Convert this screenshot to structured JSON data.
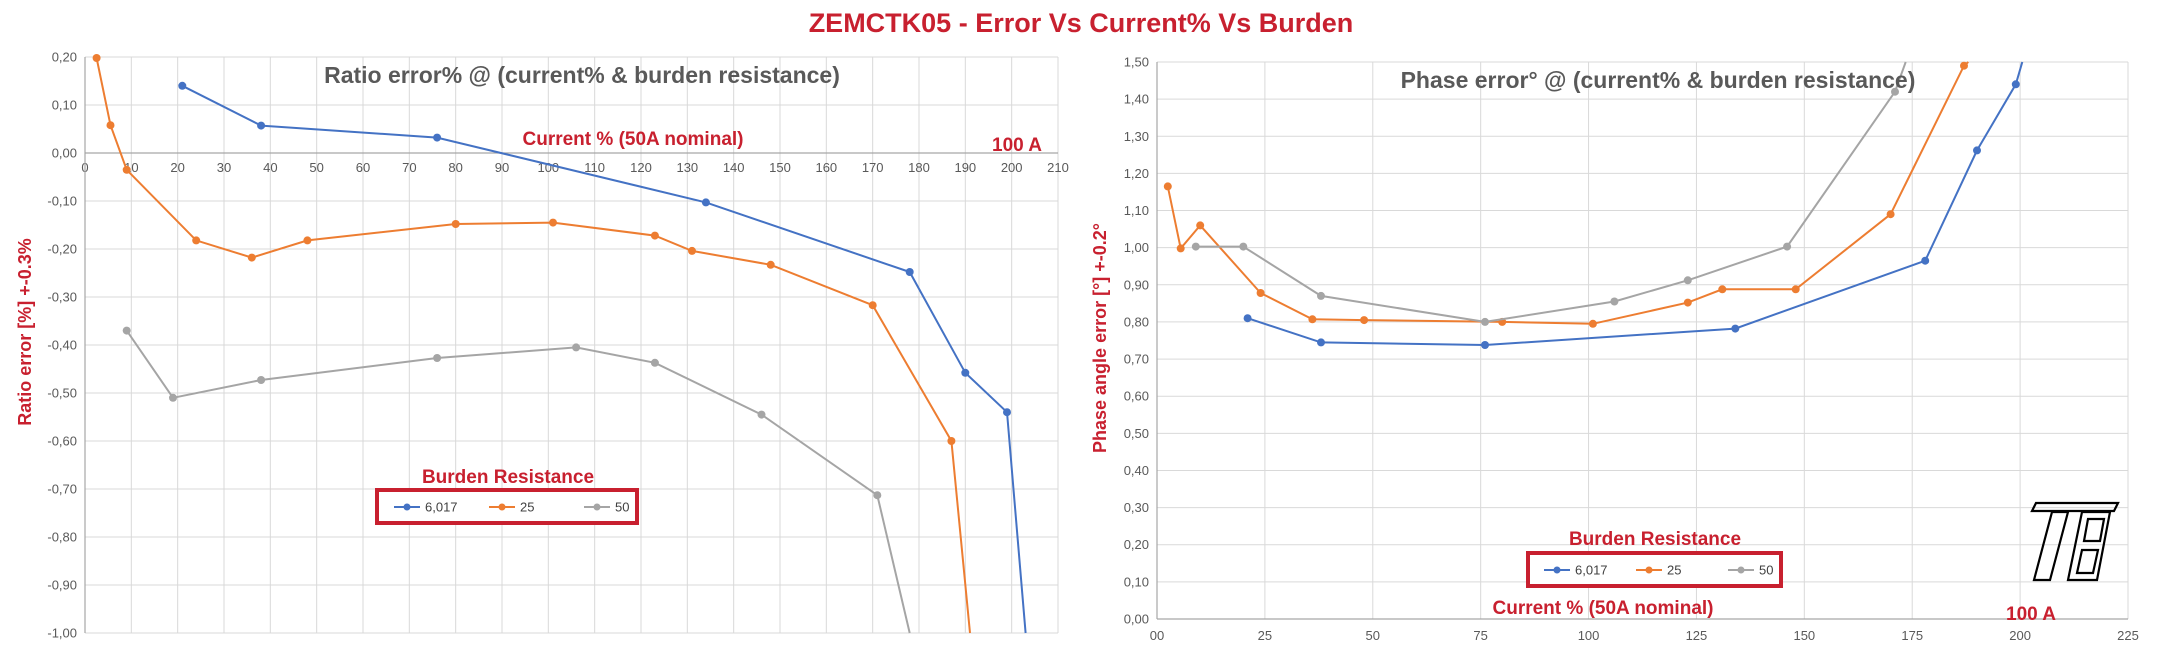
{
  "title": "ZEMCTK05  -  Error Vs Current% Vs Burden",
  "chart_data": [
    {
      "type": "line",
      "title": "Ratio error% @ (current% & burden resistance)",
      "xlabel": "Current % (50A nominal)",
      "ylabel": "Ratio error [%] +-0.3%",
      "marker_label": "100 A",
      "legend_title": "Burden Resistance",
      "xlim": [
        0,
        210
      ],
      "ylim": [
        -1.0,
        0.2
      ],
      "x_ticks": [
        "0",
        "10",
        "20",
        "30",
        "40",
        "50",
        "60",
        "70",
        "80",
        "90",
        "100",
        "110",
        "120",
        "130",
        "140",
        "150",
        "160",
        "170",
        "180",
        "190",
        "200",
        "210"
      ],
      "y_ticks": [
        "0,20",
        "0,10",
        "0,00",
        "-0,10",
        "-0,20",
        "-0,30",
        "-0,40",
        "-0,50",
        "-0,60",
        "-0,70",
        "-0,80",
        "-0,90",
        "-1,00"
      ],
      "series": [
        {
          "name": "6,017",
          "color": "#4472c4",
          "points": [
            [
              21,
              0.14
            ],
            [
              38,
              0.057
            ],
            [
              76,
              0.032
            ],
            [
              134,
              -0.103
            ],
            [
              178,
              -0.248
            ],
            [
              190,
              -0.458
            ],
            [
              199,
              -0.54
            ],
            [
              203,
              -1.0
            ]
          ]
        },
        {
          "name": "25",
          "color": "#ed7d31",
          "points": [
            [
              2.5,
              0.198
            ],
            [
              5.5,
              0.058
            ],
            [
              9,
              -0.035
            ],
            [
              24,
              -0.182
            ],
            [
              36,
              -0.218
            ],
            [
              48,
              -0.182
            ],
            [
              80,
              -0.148
            ],
            [
              101,
              -0.145
            ],
            [
              123,
              -0.172
            ],
            [
              131,
              -0.204
            ],
            [
              148,
              -0.233
            ],
            [
              170,
              -0.317
            ],
            [
              187,
              -0.6
            ],
            [
              191,
              -1.0
            ]
          ]
        },
        {
          "name": "50",
          "color": "#a5a5a5",
          "points": [
            [
              9,
              -0.37
            ],
            [
              19,
              -0.51
            ],
            [
              38,
              -0.473
            ],
            [
              76,
              -0.427
            ],
            [
              106,
              -0.405
            ],
            [
              123,
              -0.437
            ],
            [
              146,
              -0.545
            ],
            [
              171,
              -0.713
            ],
            [
              178,
              -1.0
            ]
          ]
        }
      ]
    },
    {
      "type": "line",
      "title": "Phase error° @ (current% & burden resistance)",
      "xlabel": "Current % (50A nominal)",
      "ylabel": "Phase angle error [°] +-0.2°",
      "marker_label": "100 A",
      "legend_title": "Burden Resistance",
      "xlim": [
        0,
        225
      ],
      "ylim": [
        0,
        1.5
      ],
      "x_ticks": [
        "00",
        "25",
        "50",
        "75",
        "100",
        "125",
        "150",
        "175",
        "200",
        "225"
      ],
      "y_ticks": [
        "1,50",
        "1,40",
        "1,30",
        "1,20",
        "1,10",
        "1,00",
        "0,90",
        "0,80",
        "0,70",
        "0,60",
        "0,50",
        "0,40",
        "0,30",
        "0,20",
        "0,10",
        "0,00"
      ],
      "series": [
        {
          "name": "6,017",
          "color": "#4472c4",
          "points": [
            [
              21,
              0.81
            ],
            [
              38,
              0.745
            ],
            [
              76,
              0.738
            ],
            [
              134,
              0.782
            ],
            [
              178,
              0.965
            ],
            [
              190,
              1.262
            ],
            [
              199,
              1.44
            ],
            [
              200.5,
              1.5
            ]
          ]
        },
        {
          "name": "25",
          "color": "#ed7d31",
          "points": [
            [
              2.5,
              1.165
            ],
            [
              5.5,
              0.998
            ],
            [
              10,
              1.06
            ],
            [
              24,
              0.878
            ],
            [
              36,
              0.807
            ],
            [
              48,
              0.805
            ],
            [
              80,
              0.8
            ],
            [
              101,
              0.795
            ],
            [
              123,
              0.852
            ],
            [
              131,
              0.888
            ],
            [
              148,
              0.888
            ],
            [
              170,
              1.09
            ],
            [
              187,
              1.49
            ],
            [
              188,
              1.5
            ]
          ]
        },
        {
          "name": "50",
          "color": "#a5a5a5",
          "points": [
            [
              9,
              1.003
            ],
            [
              20,
              1.003
            ],
            [
              38,
              0.87
            ],
            [
              76,
              0.8
            ],
            [
              106,
              0.855
            ],
            [
              123,
              0.912
            ],
            [
              146,
              1.003
            ],
            [
              171,
              1.42
            ],
            [
              173.5,
              1.5
            ]
          ]
        }
      ]
    }
  ]
}
